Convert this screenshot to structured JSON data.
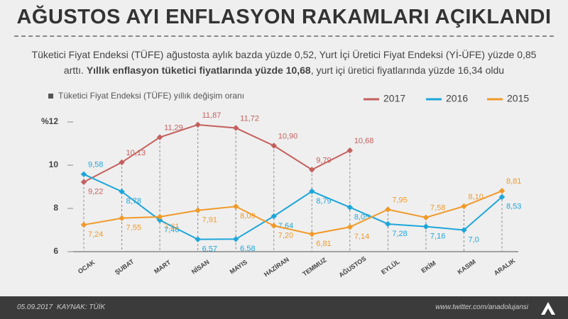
{
  "header": {
    "title": "AĞUSTOS AYI ENFLASYON RAKAMLARI AÇIKLANDI",
    "description": [
      "Tüketici Fiyat Endeksi (TÜFE) ağustosta aylık bazda yüzde 0,52, Yurt İçi Üretici Fiyat Endeksi (Yİ-ÜFE) yüzde 0,85 arttı. ",
      "Yıllık enflasyon tüketici fiyatlarında yüzde 10,68",
      ", yurt içi üretici fiyatlarında yüzde 16,34 oldu"
    ]
  },
  "chart_data": {
    "type": "line",
    "subtitle": "Tüketici Fiyat Endeksi (TÜFE) yıllık değişim oranı",
    "categories": [
      "OCAK",
      "ŞUBAT",
      "MART",
      "NİSAN",
      "MAYIS",
      "HAZİRAN",
      "TEMMUZ",
      "AĞUSTOS",
      "EYLÜL",
      "EKİM",
      "KASIM",
      "ARALIK"
    ],
    "series": [
      {
        "name": "2017",
        "color": "#c4605d",
        "values": [
          9.22,
          10.13,
          11.29,
          11.87,
          11.72,
          10.9,
          9.79,
          10.68,
          null,
          null,
          null,
          null
        ],
        "value_labels": [
          "9,22",
          "10,13",
          "11,29",
          "11,87",
          "11,72",
          "10,90",
          "9,79",
          "10,68",
          null,
          null,
          null,
          null
        ]
      },
      {
        "name": "2016",
        "color": "#1ea6d9",
        "values": [
          9.58,
          8.78,
          7.46,
          6.57,
          6.58,
          7.64,
          8.79,
          8.05,
          7.28,
          7.16,
          7.0,
          8.53
        ],
        "value_labels": [
          "9,58",
          "8,78",
          "7,46",
          "6,57",
          "6,58",
          "7,64",
          "8,79",
          "8,05",
          "7,28",
          "7,16",
          "7,0",
          "8,53"
        ]
      },
      {
        "name": "2015",
        "color": "#f09a2a",
        "values": [
          7.24,
          7.55,
          7.61,
          7.91,
          8.09,
          7.2,
          6.81,
          7.14,
          7.95,
          7.58,
          8.1,
          8.81
        ],
        "value_labels": [
          "7,24",
          "7,55",
          "7,61",
          "7,91",
          "8,09",
          "7,20",
          "6,81",
          "7,14",
          "7,95",
          "7,58",
          "8,10",
          "8,81"
        ]
      }
    ],
    "ylim": [
      6,
      12
    ],
    "yticks": [
      6,
      8,
      10,
      {
        "value": 12,
        "label": "%12"
      }
    ]
  },
  "footer": {
    "date": "05.09.2017",
    "source": "KAYNAK: TÜİK",
    "url": "www.twitter.com/anadolujansi"
  }
}
